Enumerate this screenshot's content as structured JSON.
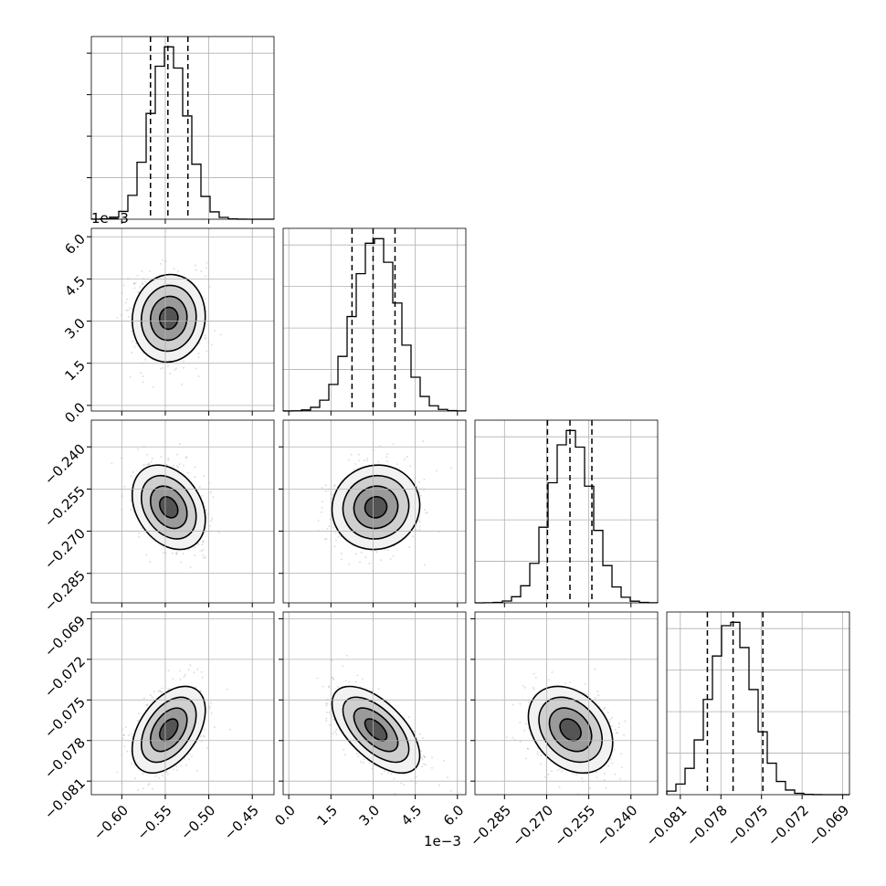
{
  "chart_data": {
    "type": "corner",
    "parameters": 4,
    "grid": true,
    "quantiles": [
      0.16,
      0.5,
      0.84
    ],
    "contour_levels": [
      "0.5-sigma",
      "1-sigma",
      "1.5-sigma",
      "2-sigma"
    ],
    "point_color": "#000000",
    "axes": [
      {
        "range": [
          -0.635,
          -0.425
        ],
        "ticks": [
          -0.6,
          -0.55,
          -0.5,
          -0.45
        ],
        "tick_labels": [
          "−0.60",
          "−0.55",
          "−0.50",
          "−0.45"
        ],
        "mean": -0.546,
        "std": 0.021,
        "quantile_values": [
          -0.567,
          -0.547,
          -0.524
        ]
      },
      {
        "range": [
          -0.0002,
          0.0063
        ],
        "ticks": [
          0.0,
          0.0015,
          0.003,
          0.0045,
          0.006
        ],
        "tick_labels": [
          "0.0",
          "1.5",
          "3.0",
          "4.5",
          "6.0"
        ],
        "offset_label": "1e−3",
        "mean": 0.0031,
        "std": 0.00078,
        "quantile_values": [
          0.00225,
          0.003,
          0.00378
        ]
      },
      {
        "range": [
          -0.2955,
          -0.2305
        ],
        "ticks": [
          -0.285,
          -0.27,
          -0.255,
          -0.24
        ],
        "tick_labels": [
          "−0.285",
          "−0.270",
          "−0.255",
          "−0.240"
        ],
        "mean": -0.2615,
        "std": 0.0075,
        "quantile_values": [
          -0.2697,
          -0.2617,
          -0.2539
        ]
      },
      {
        "range": [
          -0.082,
          -0.0685
        ],
        "ticks": [
          -0.081,
          -0.078,
          -0.075,
          -0.072,
          -0.069
        ],
        "tick_labels": [
          "−0.081",
          "−0.078",
          "−0.075",
          "−0.072",
          "−0.069"
        ],
        "mean": -0.0772,
        "std": 0.0016,
        "quantile_values": [
          -0.079,
          -0.0771,
          -0.0749
        ]
      }
    ],
    "correlations": [
      {
        "i": 1,
        "j": 0,
        "rho": 0.05
      },
      {
        "i": 2,
        "j": 0,
        "rho": -0.3
      },
      {
        "i": 2,
        "j": 1,
        "rho": 0.05
      },
      {
        "i": 3,
        "j": 0,
        "rho": 0.45
      },
      {
        "i": 3,
        "j": 1,
        "rho": -0.6
      },
      {
        "i": 3,
        "j": 2,
        "rho": -0.3
      }
    ]
  }
}
